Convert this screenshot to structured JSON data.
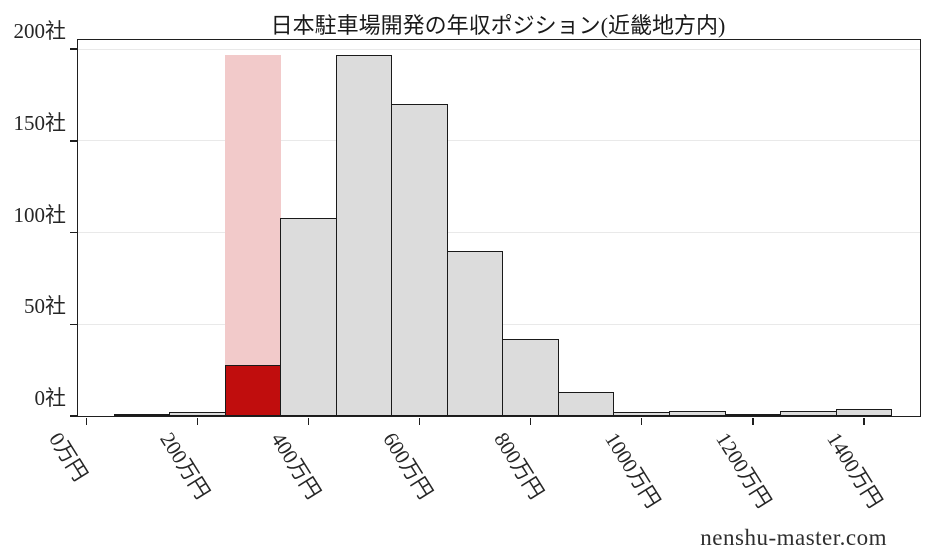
{
  "title": "日本駐車場開発の年収ポジション(近畿地方内)",
  "watermark": "nenshu-master.com",
  "colors": {
    "bar_fill": "#dcdcdc",
    "bar_edge": "#1a1a1a",
    "highlight_bar": "#c00d0d",
    "highlight_background": "#f2caca",
    "gridline": "#e9e9e9",
    "axis": "#1f1f1f",
    "text": "#262626"
  },
  "chart_data": {
    "type": "bar",
    "subtype": "histogram",
    "title": "日本駐車場開発の年収ポジション(近畿地方内)",
    "xlabel": "",
    "ylabel": "",
    "x_unit": "万円",
    "y_unit": "社",
    "bin_start": 50,
    "bin_width": 100,
    "categories": [
      100,
      200,
      300,
      400,
      500,
      600,
      700,
      800,
      900,
      1000,
      1100,
      1200,
      1300,
      1400
    ],
    "values": [
      1,
      2,
      28,
      108,
      197,
      170,
      90,
      42,
      13,
      2,
      3,
      1,
      3,
      4
    ],
    "highlight": {
      "bin_center": 300,
      "bin_index": 2,
      "bar_value": 28,
      "background_value": 197
    },
    "xlim": [
      -15,
      1501
    ],
    "ylim": [
      0,
      205
    ],
    "grid": "horizontal",
    "legend": "none",
    "xticks": [
      {
        "value": 0,
        "label": "0万円"
      },
      {
        "value": 200,
        "label": "200万円"
      },
      {
        "value": 400,
        "label": "400万円"
      },
      {
        "value": 600,
        "label": "600万円"
      },
      {
        "value": 800,
        "label": "800万円"
      },
      {
        "value": 1000,
        "label": "1000万円"
      },
      {
        "value": 1200,
        "label": "1200万円"
      },
      {
        "value": 1400,
        "label": "1400万円"
      }
    ],
    "yticks": [
      {
        "value": 0,
        "label": "0社"
      },
      {
        "value": 50,
        "label": "50社"
      },
      {
        "value": 100,
        "label": "100社"
      },
      {
        "value": 150,
        "label": "150社"
      },
      {
        "value": 200,
        "label": "200社"
      }
    ]
  }
}
